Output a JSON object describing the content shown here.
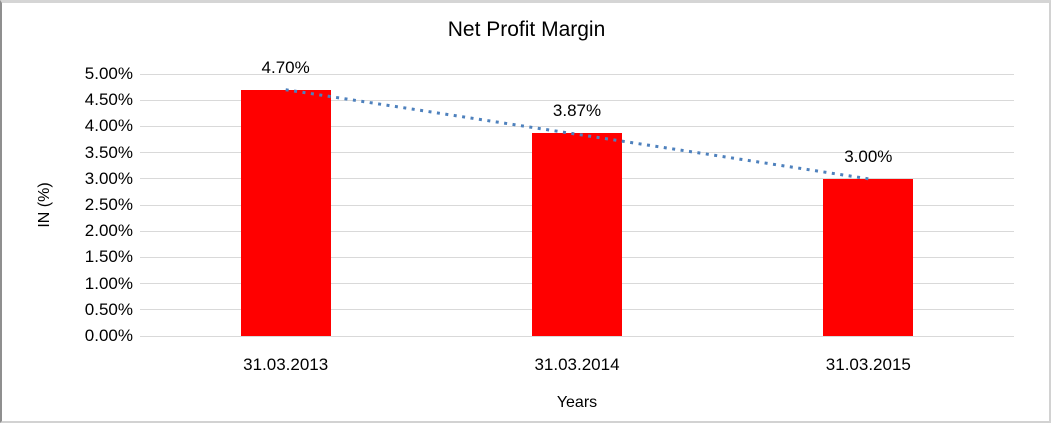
{
  "chart_data": {
    "type": "bar",
    "title": "Net Profit Margin",
    "categories": [
      "31.03.2013",
      "31.03.2014",
      "31.03.2015"
    ],
    "values": [
      4.7,
      3.87,
      3.0
    ],
    "data_labels": [
      "4.70%",
      "3.87%",
      "3.00%"
    ],
    "series_name": "Net Profit Margin",
    "xlabel": "Years",
    "ylabel": "IN (%)",
    "ylim": [
      0,
      5
    ],
    "ytick_step": 0.5,
    "ytick_labels": [
      "0.00%",
      "0.50%",
      "1.00%",
      "1.50%",
      "2.00%",
      "2.50%",
      "3.00%",
      "3.50%",
      "4.00%",
      "4.50%",
      "5.00%"
    ],
    "grid": true,
    "legend_position": "none",
    "bar_color": "#ff0000",
    "gridline_color": "#d9d9d9",
    "text_color": "#000000",
    "trendline": {
      "type": "linear",
      "style": "dotted",
      "color": "#4e81bd",
      "from_value": 4.7,
      "to_value": 3.0
    }
  }
}
